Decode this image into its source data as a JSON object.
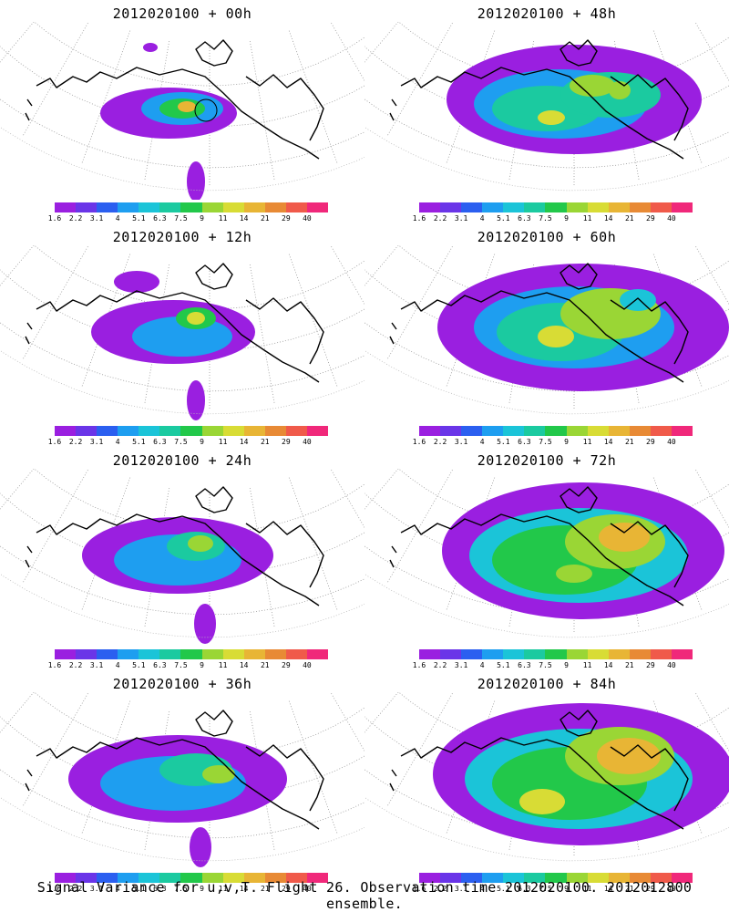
{
  "panels": [
    {
      "title": "2012020100 + 00h"
    },
    {
      "title": "2012020100 + 48h"
    },
    {
      "title": "2012020100 + 12h"
    },
    {
      "title": "2012020100 + 60h"
    },
    {
      "title": "2012020100 + 24h"
    },
    {
      "title": "2012020100 + 72h"
    },
    {
      "title": "2012020100 + 36h"
    },
    {
      "title": "2012020100 + 84h"
    }
  ],
  "colorbar": {
    "labels": [
      "1.6",
      "2.2",
      "3.1",
      "4",
      "5.1",
      "6.3",
      "7.5",
      "9",
      "11",
      "14",
      "21",
      "29",
      "40"
    ],
    "colors": [
      "#9a1fe0",
      "#6a35e8",
      "#2b5ff0",
      "#1e9ef0",
      "#1bc4d8",
      "#1bcaa0",
      "#22c84a",
      "#9ad635",
      "#d8dc35",
      "#e8b535",
      "#e88a35",
      "#f05a4a",
      "#f0287a"
    ]
  },
  "footer": "Signal Variance for u,v,T. Flight 26. Observation time 2012020100. 2012012800 ensemble."
}
